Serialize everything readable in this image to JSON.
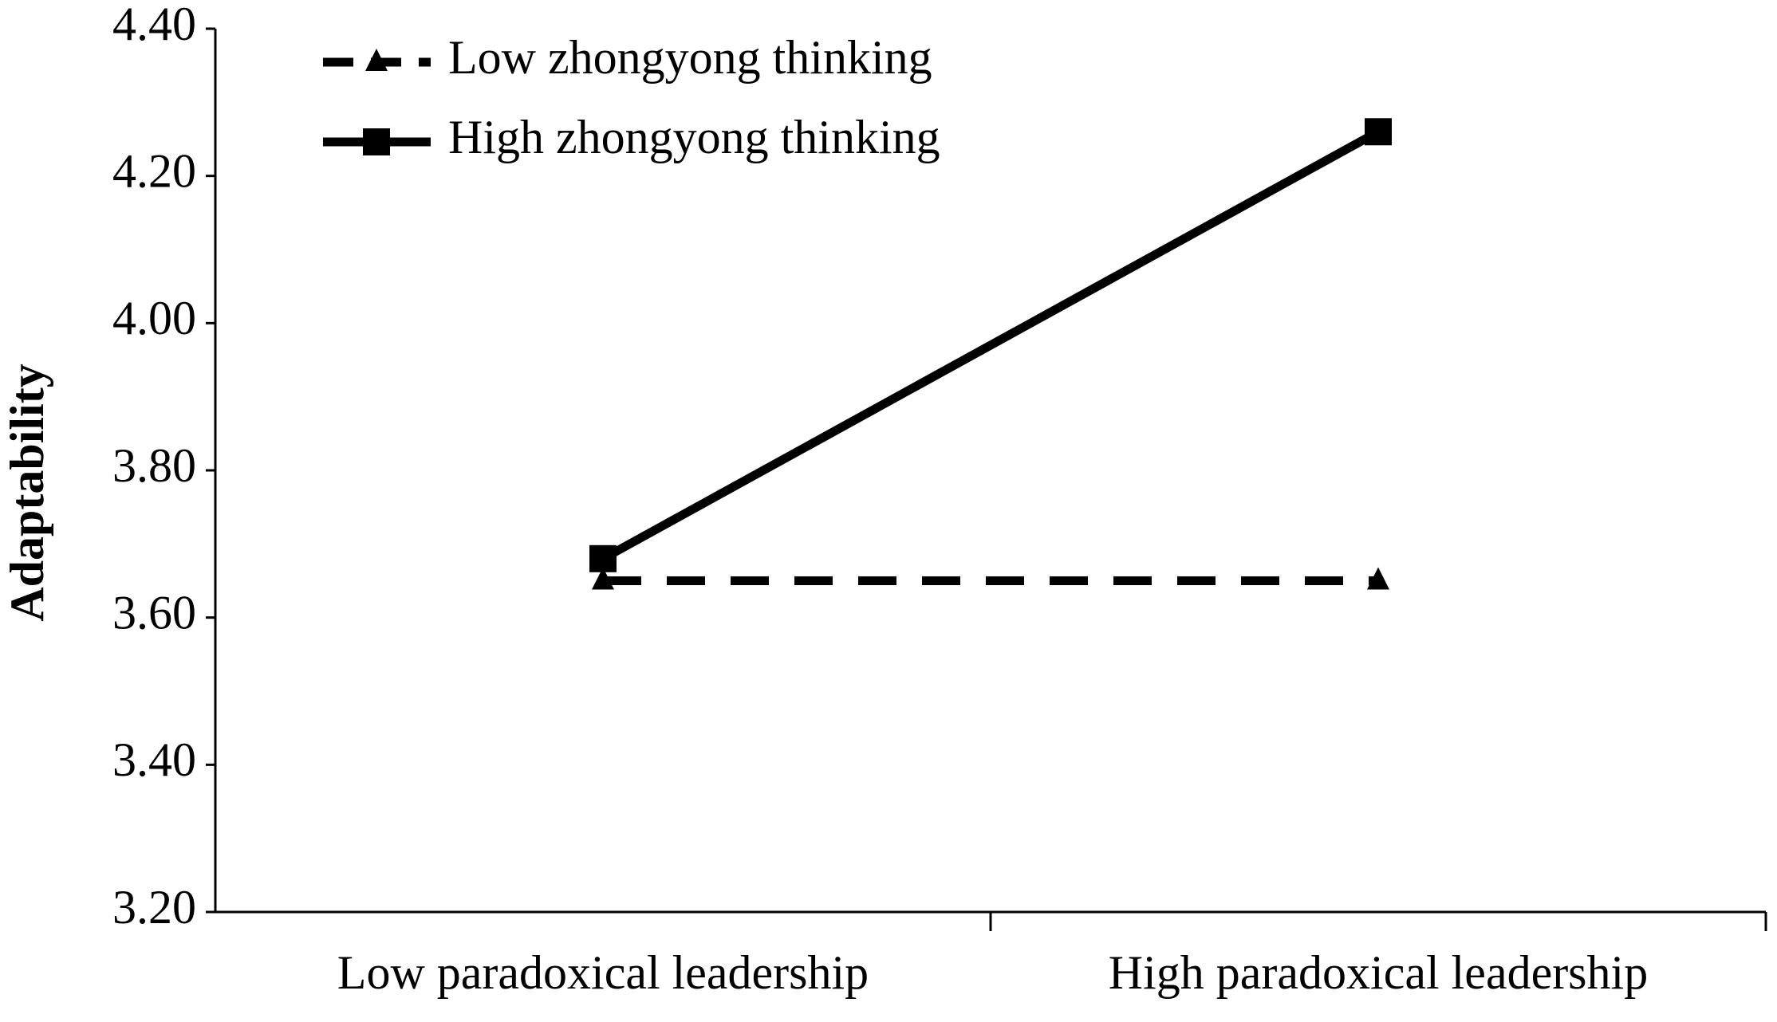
{
  "chart_data": {
    "type": "line",
    "ylabel": "Adaptability",
    "categories": [
      "Low paradoxical leadership",
      "High paradoxical leadership"
    ],
    "series": [
      {
        "name": "Low zhongyong thinking",
        "color": "#000000",
        "linestyle": "dashed",
        "marker": "triangle",
        "values": [
          3.65,
          3.65
        ]
      },
      {
        "name": "High zhongyong thinking",
        "color": "#000000",
        "linestyle": "solid",
        "marker": "square",
        "values": [
          3.68,
          4.26
        ]
      }
    ],
    "ylim": [
      3.2,
      4.4
    ],
    "yticks": [
      {
        "value": 3.2,
        "label": "3.20"
      },
      {
        "value": 3.4,
        "label": "3.40"
      },
      {
        "value": 3.6,
        "label": "3.60"
      },
      {
        "value": 3.8,
        "label": "3.80"
      },
      {
        "value": 4.0,
        "label": "4.00"
      },
      {
        "value": 4.2,
        "label": "4.20"
      },
      {
        "value": 4.4,
        "label": "4.40"
      }
    ],
    "legend": "upper left",
    "grid": false
  }
}
